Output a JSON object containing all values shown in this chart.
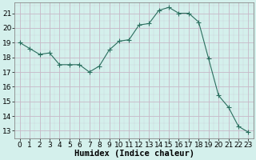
{
  "x": [
    0,
    1,
    2,
    3,
    4,
    5,
    6,
    7,
    8,
    9,
    10,
    11,
    12,
    13,
    14,
    15,
    16,
    17,
    18,
    19,
    20,
    21,
    22,
    23
  ],
  "y": [
    19.0,
    18.6,
    18.2,
    18.3,
    17.5,
    17.5,
    17.5,
    17.0,
    17.4,
    18.5,
    19.1,
    19.2,
    20.2,
    20.3,
    21.2,
    21.4,
    21.0,
    21.0,
    20.4,
    17.9,
    15.4,
    14.6,
    13.3,
    12.9
  ],
  "line_color": "#2a6e5e",
  "marker": "+",
  "marker_size": 4,
  "bg_color": "#d4f0ec",
  "grid_color_major": "#c8b8c8",
  "xlabel": "Humidex (Indice chaleur)",
  "xlim": [
    -0.5,
    23.5
  ],
  "ylim": [
    12.5,
    21.75
  ],
  "yticks": [
    13,
    14,
    15,
    16,
    17,
    18,
    19,
    20,
    21
  ],
  "xticks": [
    0,
    1,
    2,
    3,
    4,
    5,
    6,
    7,
    8,
    9,
    10,
    11,
    12,
    13,
    14,
    15,
    16,
    17,
    18,
    19,
    20,
    21,
    22,
    23
  ],
  "tick_fontsize": 6.5,
  "label_fontsize": 7.5
}
